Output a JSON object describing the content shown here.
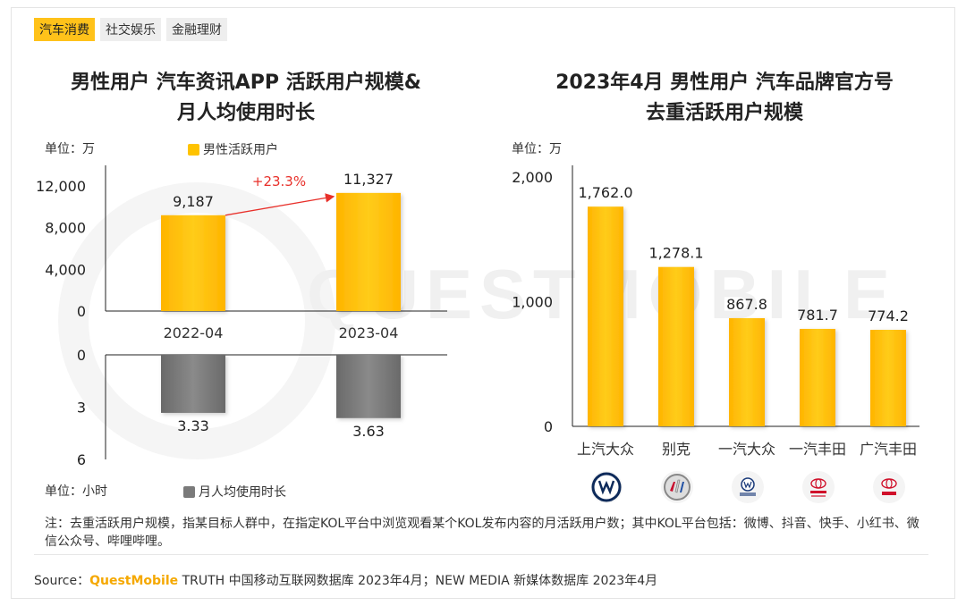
{
  "tabs": [
    {
      "label": "汽车消费",
      "active": true
    },
    {
      "label": "社交娱乐",
      "active": false
    },
    {
      "label": "金融理财",
      "active": false
    }
  ],
  "watermark": "QUESTMOBILE",
  "left": {
    "title_line1": "男性用户 汽车资讯APP 活跃用户规模&",
    "title_line2": "月人均使用时长",
    "unit_top": "单位：万",
    "legend_top": "男性活跃用户",
    "unit_bottom": "单位：小时",
    "legend_bottom": "月人均使用时长",
    "growth_label": "+23.3%"
  },
  "right": {
    "title_line1": "2023年4月 男性用户 汽车品牌官方号",
    "title_line2": "去重活跃用户规模",
    "unit": "单位：万",
    "logos": [
      "vw-logo",
      "buick-logo",
      "faw-vw-logo",
      "toyota-logo",
      "gac-toyota-logo"
    ]
  },
  "note": "注：去重活跃用户规模，指某目标人群中，在指定KOL平台中浏览观看某个KOL发布内容的月活跃用户数；其中KOL平台包括：微博、抖音、快手、小红书、微信公众号、哔哩哔哩。",
  "source": {
    "prefix": "Source：",
    "brand": "QuestMobile",
    "rest": " TRUTH 中国移动互联网数据库 2023年4月；NEW MEDIA 新媒体数据库 2023年4月"
  },
  "colors": {
    "bar_yellow": "#ffc300",
    "bar_gray": "#7a7a7a",
    "arrow_red": "#e8302a",
    "accent": "#ffc21a"
  },
  "chart_data": [
    {
      "type": "bar",
      "title": "男性用户 汽车资讯APP 活跃用户规模",
      "categories": [
        "2022-04",
        "2023-04"
      ],
      "series": [
        {
          "name": "男性活跃用户",
          "values": [
            9187,
            11327
          ]
        }
      ],
      "value_labels": [
        "9,187",
        "11,327"
      ],
      "ylabel": "单位：万",
      "yticks": [
        "0",
        "4,000",
        "8,000",
        "12,000"
      ],
      "ylim": [
        0,
        12000
      ],
      "annotation": "+23.3%"
    },
    {
      "type": "bar",
      "title": "月人均使用时长",
      "categories": [
        "2022-04",
        "2023-04"
      ],
      "series": [
        {
          "name": "月人均使用时长",
          "values": [
            3.33,
            3.63
          ]
        }
      ],
      "value_labels": [
        "3.33",
        "3.63"
      ],
      "ylabel": "单位：小时",
      "yticks": [
        "0",
        "3",
        "6"
      ],
      "ylim": [
        0,
        6
      ],
      "inverted": true
    },
    {
      "type": "bar",
      "title": "2023年4月 男性用户 汽车品牌官方号 去重活跃用户规模",
      "categories": [
        "上汽大众",
        "别克",
        "一汽大众",
        "一汽丰田",
        "广汽丰田"
      ],
      "values": [
        1762.0,
        1278.1,
        867.8,
        781.7,
        774.2
      ],
      "value_labels": [
        "1,762.0",
        "1,278.1",
        "867.8",
        "781.7",
        "774.2"
      ],
      "ylabel": "单位：万",
      "yticks": [
        "0",
        "1,000",
        "2,000"
      ],
      "ylim": [
        0,
        2000
      ]
    }
  ]
}
